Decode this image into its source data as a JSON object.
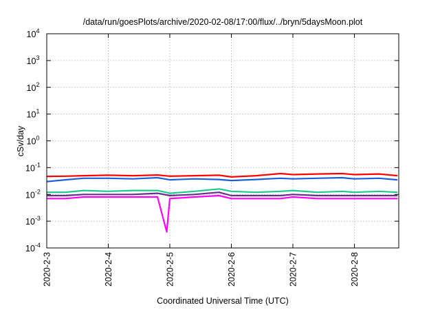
{
  "chart_data": {
    "type": "line",
    "title": "/data/run/goesPlots/archive/2020-02-08/17:00/flux/../bryn/5daysMoon.plot",
    "xlabel": "Coordinated Universal Time (UTC)",
    "ylabel": "cSv/day",
    "y_scale": "log",
    "ylim": [
      0.0001,
      10000
    ],
    "y_ticks": [
      {
        "value": 0.0001,
        "base": "10",
        "exp": "-4"
      },
      {
        "value": 0.001,
        "base": "10",
        "exp": "-3"
      },
      {
        "value": 0.01,
        "base": "10",
        "exp": "-2"
      },
      {
        "value": 0.1,
        "base": "10",
        "exp": "-1"
      },
      {
        "value": 1,
        "base": "10",
        "exp": "0"
      },
      {
        "value": 10,
        "base": "10",
        "exp": "1"
      },
      {
        "value": 100,
        "base": "10",
        "exp": "2"
      },
      {
        "value": 1000,
        "base": "10",
        "exp": "3"
      },
      {
        "value": 10000,
        "base": "10",
        "exp": "4"
      }
    ],
    "xlim": [
      "2020-02-03",
      "2020-02-08 17:00"
    ],
    "x_ticks": [
      "2020-2-3",
      "2020-2-4",
      "2020-2-5",
      "2020-2-6",
      "2020-2-7",
      "2020-2-8"
    ],
    "grid": true,
    "series": [
      {
        "color": "#ff0000",
        "x": [
          0.0,
          0.3,
          0.6,
          1.0,
          1.4,
          1.8,
          2.0,
          2.4,
          2.8,
          3.0,
          3.4,
          3.8,
          4.0,
          4.4,
          4.8,
          5.0,
          5.4,
          5.7
        ],
        "values": [
          0.047,
          0.048,
          0.05,
          0.052,
          0.05,
          0.053,
          0.048,
          0.05,
          0.052,
          0.045,
          0.05,
          0.06,
          0.055,
          0.058,
          0.06,
          0.055,
          0.058,
          0.05
        ]
      },
      {
        "color": "#1a5fd6",
        "x": [
          0.0,
          0.3,
          0.6,
          1.0,
          1.4,
          1.8,
          2.0,
          2.4,
          2.8,
          3.0,
          3.4,
          3.8,
          4.0,
          4.4,
          4.8,
          5.0,
          5.4,
          5.7
        ],
        "values": [
          0.03,
          0.035,
          0.04,
          0.04,
          0.038,
          0.042,
          0.035,
          0.038,
          0.036,
          0.033,
          0.036,
          0.04,
          0.038,
          0.04,
          0.042,
          0.038,
          0.04,
          0.035
        ]
      },
      {
        "color": "#1ec98c",
        "x": [
          0.0,
          0.3,
          0.6,
          1.0,
          1.4,
          1.8,
          2.0,
          2.4,
          2.8,
          3.0,
          3.4,
          3.8,
          4.0,
          4.4,
          4.8,
          5.0,
          5.4,
          5.7
        ],
        "values": [
          0.012,
          0.012,
          0.014,
          0.013,
          0.014,
          0.014,
          0.011,
          0.013,
          0.016,
          0.013,
          0.012,
          0.013,
          0.014,
          0.012,
          0.013,
          0.012,
          0.013,
          0.012
        ]
      },
      {
        "color": "#6a2c8a",
        "x": [
          0.0,
          0.3,
          0.6,
          1.0,
          1.4,
          1.8,
          2.0,
          2.4,
          2.8,
          3.0,
          3.4,
          3.8,
          4.0,
          4.4,
          4.8,
          5.0,
          5.4,
          5.7
        ],
        "values": [
          0.009,
          0.009,
          0.01,
          0.01,
          0.01,
          0.011,
          0.009,
          0.01,
          0.012,
          0.009,
          0.009,
          0.009,
          0.01,
          0.009,
          0.009,
          0.009,
          0.009,
          0.009
        ]
      },
      {
        "color": "#ff00ff",
        "x": [
          0.0,
          0.3,
          0.6,
          1.0,
          1.4,
          1.8,
          1.95,
          2.0,
          2.4,
          2.8,
          3.0,
          3.4,
          3.8,
          4.0,
          4.4,
          4.8,
          5.0,
          5.4,
          5.7
        ],
        "values": [
          0.007,
          0.007,
          0.008,
          0.008,
          0.008,
          0.008,
          0.0004,
          0.007,
          0.008,
          0.009,
          0.007,
          0.007,
          0.007,
          0.008,
          0.007,
          0.007,
          0.007,
          0.007,
          0.007
        ]
      }
    ]
  }
}
